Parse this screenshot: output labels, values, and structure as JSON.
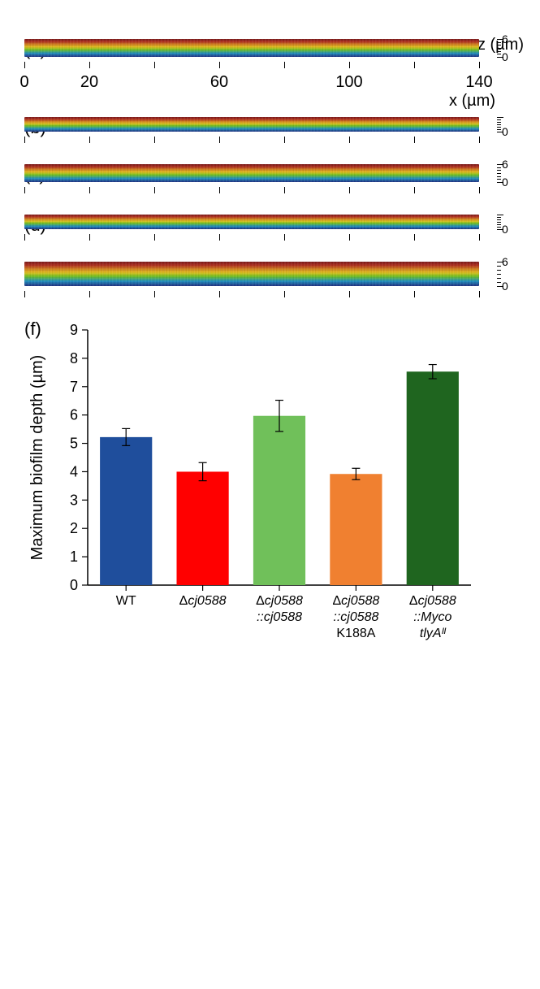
{
  "z_axis_label": "z (µm)",
  "x_axis_label": "x (µm)",
  "z_ticks": [
    0,
    6
  ],
  "x_range": [
    0,
    140
  ],
  "x_tick_step": 20,
  "x_labels_shown": [
    0,
    20,
    60,
    100,
    140
  ],
  "panels": [
    {
      "id": "a",
      "label": "(a)",
      "show_x_labels": true,
      "show_z_numbers": true,
      "strip_h": 22,
      "gradient": [
        "#7a1a1a",
        "#b03020",
        "#d08020",
        "#e0c020",
        "#70c020",
        "#2090c0",
        "#203080"
      ]
    },
    {
      "id": "b",
      "label": "(b)",
      "show_x_labels": false,
      "show_z_numbers": false,
      "strip_h": 18,
      "gradient": [
        "#7a1a1a",
        "#b03020",
        "#d08020",
        "#e0c020",
        "#70c020",
        "#2090c0",
        "#203080"
      ]
    },
    {
      "id": "c",
      "label": "(c)",
      "show_x_labels": false,
      "show_z_numbers": true,
      "strip_h": 22,
      "gradient": [
        "#7a1a1a",
        "#b03020",
        "#d08020",
        "#e0c020",
        "#70c020",
        "#2090c0",
        "#203080"
      ]
    },
    {
      "id": "d",
      "label": "(d)",
      "show_x_labels": false,
      "show_z_numbers": false,
      "strip_h": 18,
      "gradient": [
        "#7a1a1a",
        "#b03020",
        "#d08020",
        "#e0c020",
        "#70c020",
        "#2090c0",
        "#203080"
      ]
    },
    {
      "id": "e",
      "label": "(e)",
      "show_x_labels": false,
      "show_z_numbers": true,
      "strip_h": 30,
      "gradient": [
        "#7a1a1a",
        "#b03020",
        "#d08020",
        "#e0c020",
        "#70c020",
        "#2090c0",
        "#203080"
      ]
    }
  ],
  "bar_chart": {
    "panel_label": "(f)",
    "type": "bar",
    "y_label": "Maximum biofilm depth (µm)",
    "ylim": [
      0,
      9
    ],
    "ytick_step": 1,
    "bar_width": 0.68,
    "background_color": "#ffffff",
    "axis_color": "#000000",
    "tick_fontsize": 18,
    "label_fontsize": 20,
    "cat_fontsize": 16,
    "error_cap_width": 10,
    "error_line_width": 1.2,
    "categories": [
      {
        "lines": [
          "WT"
        ],
        "italic": [
          false
        ],
        "value": 5.22,
        "err": 0.3,
        "color": "#1f4e9c"
      },
      {
        "lines": [
          "Δcj0588"
        ],
        "italic": [
          true
        ],
        "value": 4.0,
        "err": 0.32,
        "color": "#ff0000"
      },
      {
        "lines": [
          "Δcj0588",
          "::cj0588"
        ],
        "italic": [
          true,
          true
        ],
        "value": 5.97,
        "err": 0.55,
        "color": "#70c05a"
      },
      {
        "lines": [
          "Δcj0588",
          "::cj0588",
          "K188A"
        ],
        "italic": [
          true,
          true,
          false
        ],
        "value": 3.92,
        "err": 0.2,
        "color": "#f08030"
      },
      {
        "lines": [
          "Δcj0588",
          "::Myco",
          "tlyAᴵᴵ"
        ],
        "italic": [
          true,
          true,
          true
        ],
        "value": 7.53,
        "err": 0.25,
        "color": "#1f651f"
      }
    ]
  }
}
